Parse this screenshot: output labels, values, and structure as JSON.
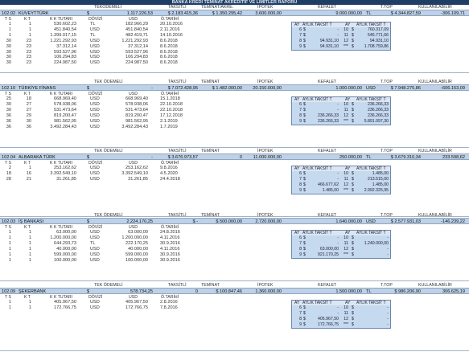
{
  "title": "BANKA KREDİ TEMİNAT AKREDİTİF VE LİMİTLER RAPORU",
  "labels": {
    "tekodemeli": "TEKODEMELİ",
    "tek_odemeli": "TEK ÖDEMELİ",
    "taksitli": "TAKSİTLİ",
    "teminat_akre": "TEMİNAT/AKRE.",
    "teminat": "TEMİNAT",
    "ipotek": "İPOTEK",
    "kefalet": "KEFALET",
    "ttop": "T.TOP",
    "kullanilabilir": "KULLANILABİLİR",
    "ts": "T S",
    "kt": "K T",
    "kk_tutari": "K K TUTARI",
    "dovizi": "DÖVİZİ",
    "usd": "USD",
    "o_tarihi": "Ö.TARİHİ",
    "ay": "AY",
    "ayl_kt": "AYLIK TAKSİT T",
    "ayl_kt2": "AYLIK TAKSİT T"
  },
  "banks": [
    {
      "code": "102.02",
      "name": "KUVEYTTÜRK",
      "tek_cur": "$",
      "tek": "1.117.226,53",
      "taksitli": "$  2.183.415,36",
      "teminat": "$  1.350.295,42",
      "ipotek": "3.600.000,00",
      "kefalet": "9.000.000,00",
      "kef_cur": "TL",
      "ttop": "$  4.344.827,59",
      "kull": "-306.109,71",
      "rows": [
        [
          "1",
          "1",
          "530.602,23",
          "TL",
          "182.966,29",
          "20.10.2016"
        ],
        [
          "1",
          "1",
          "451.840,54",
          "USD",
          "451.840,54",
          "2.11.2016"
        ],
        [
          "1",
          "1",
          "1.399.017,15",
          "TL",
          "482.419,71",
          "14.10.2016"
        ],
        [
          "30",
          "23",
          "1.221.292,93",
          "USD",
          "1.221.292,93",
          "8.6.2018"
        ],
        [
          "30",
          "23",
          "37.312,14",
          "USD",
          "37.312,14",
          "8.6.2018"
        ],
        [
          "30",
          "23",
          "593.527,96",
          "USD",
          "593.527,96",
          "8.6.2018"
        ],
        [
          "30",
          "23",
          "106.294,83",
          "USD",
          "106.294,83",
          "8.6.2018"
        ],
        [
          "30",
          "23",
          "224.987,50",
          "USD",
          "224.987,50",
          "8.6.2018"
        ]
      ],
      "ay": [
        [
          "6",
          "$",
          "-",
          "10",
          "$",
          "760.317,09",
          ""
        ],
        [
          "7",
          "$",
          "-",
          "11",
          "$",
          "546.771,66",
          ""
        ],
        [
          "8",
          "$",
          "94.931,10",
          "12",
          "$",
          "94.931,10",
          ""
        ],
        [
          "9",
          "$",
          "94.931,10",
          "***",
          "$",
          "1.708.759,86",
          ""
        ]
      ]
    },
    {
      "code": "102.10",
      "name": "TÜRKİYE FİNANS",
      "tek_cur": "$",
      "tek": "-",
      "taksitli": "$  7.072.428,95",
      "teminat": "$  1.482.000,00",
      "ipotek": "20.150.000,00",
      "kefalet": "1.000.000,00",
      "kef_cur": "USD",
      "ttop": "$  7.948.275,86",
      "kull": "-606.153,09",
      "rows": [
        [
          "25",
          "18",
          "668.969,40",
          "USD",
          "668.969,40",
          "15.1.2018"
        ],
        [
          "30",
          "27",
          "578.938,06",
          "USD",
          "578.938,06",
          "22.10.2018"
        ],
        [
          "30",
          "27",
          "531.473,64",
          "USD",
          "531.473,64",
          "22.10.2018"
        ],
        [
          "36",
          "29",
          "819.200,47",
          "USD",
          "819.200,47",
          "17.12.2018"
        ],
        [
          "36",
          "30",
          "981.562,95",
          "USD",
          "981.562,95",
          "2.1.2019"
        ],
        [
          "36",
          "36",
          "3.492.284,43",
          "USD",
          "3.492.284,43",
          "1.7.2019"
        ]
      ],
      "ay": [
        [
          "6",
          "$",
          "-",
          "10",
          "$",
          "236.266,33",
          ""
        ],
        [
          "7",
          "$",
          "-",
          "11",
          "$",
          "236.266,33",
          ""
        ],
        [
          "8",
          "$",
          "236.266,33",
          "12",
          "$",
          "236.266,33",
          ""
        ],
        [
          "9",
          "$",
          "236.266,33",
          "***",
          "$",
          "5.891.097,30",
          ""
        ]
      ]
    },
    {
      "code": "102.04",
      "name": "ALBARAKA TÜRK",
      "tek_cur": "$",
      "tek": "-",
      "taksitli": "$  3.676.973,57",
      "teminat": "0",
      "ipotek": "11.000.000,00",
      "kefalet": "250.000,00",
      "kef_cur": "TL",
      "ttop": "$  3.679.310,34",
      "kull": "233.598,62",
      "rows": [
        [
          "2",
          "1",
          "253.162,62",
          "USD",
          "253.162,62",
          "9.8.2016"
        ],
        [
          "18",
          "16",
          "3.392.549,10",
          "USD",
          "3.392.549,10",
          "4.5.2020"
        ],
        [
          "28",
          "21",
          "31.261,85",
          "USD",
          "31.261,85",
          "24.4.2018"
        ]
      ],
      "ay": [
        [
          "6",
          "$",
          "-",
          "10",
          "$",
          "1.485,00",
          ""
        ],
        [
          "7",
          "$",
          "-",
          "11",
          "$",
          "213.515,00",
          ""
        ],
        [
          "8",
          "$",
          "466.677,62",
          "12",
          "$",
          "1.485,00",
          ""
        ],
        [
          "9",
          "$",
          "1.485,00",
          "***",
          "$",
          "2.992.325,95",
          ""
        ]
      ]
    },
    {
      "code": "102.03",
      "name": "İŞ BANKASI",
      "tek_cur": "$",
      "tek": "2.224.170,25",
      "taksitli": "$  -",
      "teminat": "$  500.000,00",
      "ipotek": "2.720.000,00",
      "kefalet": "1.640.000,00",
      "kef_cur": "USD",
      "ttop": "$  2.577.931,03",
      "kull": "-146.239,22",
      "rows": [
        [
          "1",
          "1",
          "63.000,00",
          "USD",
          "63.000,00",
          "24.8.2016"
        ],
        [
          "1",
          "1",
          "1.200.000,00",
          "USD",
          "1.200.000,00",
          "4.11.2016"
        ],
        [
          "1",
          "1",
          "644.293,73",
          "TL",
          "222.170,25",
          "30.9.2016"
        ],
        [
          "1",
          "1",
          "40.000,00",
          "USD",
          "40.000,00",
          "4.11.2016"
        ],
        [
          "1",
          "1",
          "599.000,00",
          "USD",
          "599.000,00",
          "30.9.2016"
        ],
        [
          "1",
          "1",
          "100.000,00",
          "USD",
          "100.000,00",
          "30.9.2016"
        ]
      ],
      "ay": [
        [
          "6",
          "$",
          "-",
          "10",
          "$",
          "-",
          ""
        ],
        [
          "7",
          "$",
          "-",
          "11",
          "$",
          "1.240.000,00",
          ""
        ],
        [
          "8",
          "$",
          "63.000,00",
          "12",
          "$",
          "-",
          ""
        ],
        [
          "9",
          "$",
          "921.170,25",
          "***",
          "$",
          "-",
          ""
        ]
      ]
    },
    {
      "code": "102.09",
      "name": "ŞEKERBANK",
      "tek_cur": "$",
      "tek": "578.734,25",
      "taksitli": "0",
      "teminat": "$  100.847,46",
      "ipotek": "1.360.000,00",
      "kefalet": "1.500.000,00",
      "kef_cur": "TL",
      "ttop": "$  986.206,90",
      "kull": "306.625,19",
      "rows": [
        [
          "1",
          "1",
          "405.967,50",
          "USD",
          "405.967,50",
          "2.8.2016"
        ],
        [
          "1",
          "1",
          "172.766,75",
          "USD",
          "172.766,75",
          "7.8.2016"
        ]
      ],
      "ay": [
        [
          "6",
          "$",
          "-",
          "10",
          "$",
          "-",
          ""
        ],
        [
          "7",
          "$",
          "-",
          "11",
          "$",
          "-",
          ""
        ],
        [
          "8",
          "$",
          "405.967,50",
          "12",
          "$",
          "-",
          ""
        ],
        [
          "9",
          "$",
          "172.766,75",
          "***",
          "$",
          "-",
          ""
        ]
      ]
    }
  ]
}
